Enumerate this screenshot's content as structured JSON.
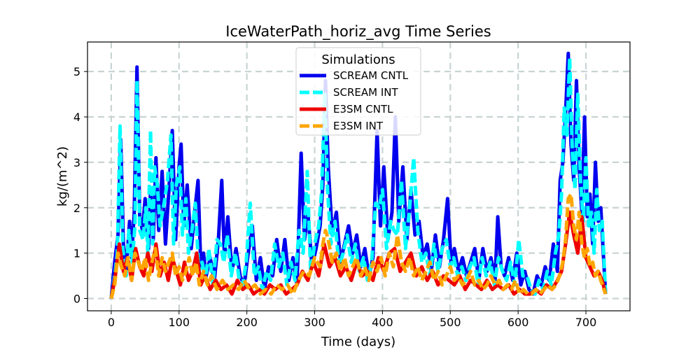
{
  "chart_data": {
    "type": "line",
    "title": "IceWaterPath_horiz_avg Time Series",
    "xlabel": "Time (days)",
    "ylabel": "kg/(m^2)",
    "xlim": [
      -35,
      765
    ],
    "ylim": [
      -0.27,
      5.65
    ],
    "xticks": [
      0,
      100,
      200,
      300,
      400,
      500,
      600,
      700
    ],
    "yticks": [
      0,
      1,
      2,
      3,
      4,
      5
    ],
    "grid": true,
    "legend": {
      "title": "Simulations",
      "position": "upper-center"
    },
    "series": [
      {
        "name": "SCREAM CNTL",
        "color": "#0000ee",
        "style": "solid",
        "x": [
          0,
          5,
          10,
          14,
          18,
          22,
          27,
          30,
          34,
          38,
          42,
          46,
          50,
          55,
          58,
          62,
          66,
          70,
          75,
          80,
          85,
          90,
          95,
          100,
          103,
          107,
          112,
          118,
          123,
          128,
          132,
          136,
          140,
          146,
          152,
          158,
          163,
          167,
          172,
          178,
          184,
          190,
          196,
          202,
          208,
          214,
          220,
          226,
          232,
          238,
          244,
          250,
          256,
          262,
          268,
          274,
          280,
          285,
          290,
          296,
          302,
          308,
          312,
          316,
          320,
          326,
          332,
          338,
          344,
          350,
          356,
          362,
          368,
          374,
          380,
          386,
          392,
          397,
          402,
          408,
          414,
          419,
          424,
          430,
          436,
          442,
          448,
          454,
          460,
          466,
          472,
          478,
          484,
          490,
          496,
          501,
          506,
          512,
          518,
          524,
          530,
          536,
          542,
          548,
          554,
          560,
          566,
          570,
          575,
          580,
          586,
          592,
          598,
          604,
          610,
          616,
          622,
          628,
          634,
          640,
          646,
          652,
          658,
          662,
          666,
          670,
          674,
          678,
          682,
          686,
          690,
          694,
          698,
          702,
          706,
          710,
          714,
          718,
          722,
          726,
          729
        ],
        "y": [
          0,
          0.8,
          1.4,
          3.5,
          1.2,
          0.6,
          1.7,
          0.9,
          1.9,
          5.1,
          1.8,
          1.5,
          2.2,
          1.1,
          2.4,
          1.3,
          3.1,
          1.5,
          2.8,
          1.2,
          2.4,
          3.7,
          1.3,
          2.9,
          3.4,
          1.6,
          2.5,
          1.1,
          1.9,
          2.6,
          0.7,
          1.0,
          0.5,
          0.9,
          0.4,
          1.3,
          2.6,
          0.9,
          1.8,
          0.6,
          1.1,
          0.5,
          0.3,
          1.0,
          1.6,
          0.4,
          0.9,
          0.2,
          0.7,
          0.5,
          1.3,
          0.6,
          1.3,
          0.4,
          0.9,
          0.3,
          3.2,
          1.3,
          1.9,
          0.7,
          1.1,
          1.6,
          2.5,
          4.8,
          2.9,
          1.4,
          1.9,
          0.8,
          1.2,
          1.6,
          1.0,
          1.4,
          0.7,
          1.1,
          0.5,
          0.9,
          3.7,
          1.6,
          2.9,
          1.3,
          1.9,
          4.0,
          1.7,
          2.9,
          1.3,
          2.4,
          1.4,
          1.7,
          0.9,
          1.2,
          0.6,
          1.4,
          0.7,
          1.3,
          2.2,
          0.8,
          1.1,
          0.6,
          0.9,
          0.5,
          0.8,
          1.1,
          0.4,
          1.1,
          0.6,
          0.9,
          0.4,
          1.8,
          0.7,
          0.5,
          0.9,
          0.4,
          1.0,
          0.3,
          0.6,
          0.2,
          0.1,
          0.5,
          0.3,
          0.7,
          0.4,
          1.2,
          0.6,
          2.6,
          3.0,
          4.1,
          5.4,
          3.4,
          2.6,
          4.8,
          2.9,
          1.9,
          4.0,
          1.8,
          2.3,
          1.2,
          3.0,
          1.7,
          2.0,
          0.9,
          0.1
        ]
      },
      {
        "name": "SCREAM INT",
        "color": "#00ffff",
        "style": "dashed",
        "x": [
          0,
          6,
          9,
          13,
          17,
          22,
          26,
          31,
          35,
          38,
          42,
          47,
          51,
          54,
          58,
          61,
          64,
          68,
          72,
          78,
          83,
          88,
          92,
          96,
          101,
          105,
          110,
          114,
          119,
          124,
          129,
          134,
          139,
          144,
          150,
          156,
          161,
          166,
          171,
          177,
          183,
          189,
          194,
          199,
          205,
          211,
          217,
          223,
          229,
          235,
          241,
          247,
          253,
          259,
          265,
          271,
          277,
          283,
          289,
          294,
          300,
          306,
          310,
          315,
          319,
          324,
          330,
          336,
          342,
          348,
          354,
          360,
          366,
          372,
          378,
          384,
          390,
          395,
          400,
          406,
          412,
          417,
          422,
          428,
          434,
          440,
          446,
          452,
          458,
          464,
          470,
          476,
          482,
          488,
          494,
          500,
          505,
          511,
          517,
          523,
          529,
          535,
          541,
          547,
          553,
          559,
          565,
          571,
          577,
          583,
          589,
          595,
          601,
          607,
          613,
          619,
          625,
          631,
          637,
          643,
          649,
          655,
          660,
          664,
          668,
          672,
          676,
          680,
          684,
          688,
          692,
          696,
          700,
          704,
          708,
          712,
          716,
          720,
          724,
          729
        ],
        "y": [
          0,
          0.6,
          1.0,
          3.8,
          1.1,
          0.5,
          1.5,
          0.8,
          1.6,
          4.8,
          1.5,
          1.3,
          2.0,
          1.0,
          3.7,
          1.2,
          2.9,
          2.5,
          1.6,
          2.1,
          2.6,
          3.6,
          1.2,
          2.5,
          2.9,
          1.4,
          2.2,
          1.0,
          1.5,
          2.1,
          0.6,
          0.8,
          0.4,
          1.1,
          0.3,
          1.3,
          1.2,
          0.8,
          1.4,
          0.5,
          1.0,
          0.4,
          0.3,
          0.8,
          2.1,
          0.5,
          0.7,
          0.2,
          0.6,
          0.4,
          1.2,
          0.7,
          1.0,
          0.3,
          0.8,
          0.4,
          1.5,
          1.0,
          2.8,
          0.6,
          1.2,
          1.6,
          2.3,
          4.5,
          2.4,
          1.2,
          1.7,
          0.7,
          1.0,
          1.4,
          0.8,
          1.2,
          0.6,
          0.9,
          0.4,
          0.8,
          2.1,
          2.0,
          2.4,
          1.1,
          1.7,
          1.5,
          1.4,
          2.6,
          1.1,
          2.0,
          3.1,
          1.5,
          0.8,
          1.0,
          0.5,
          1.2,
          0.6,
          1.1,
          1.3,
          0.7,
          0.9,
          0.5,
          0.7,
          0.4,
          0.7,
          0.9,
          0.3,
          0.9,
          0.5,
          0.8,
          0.3,
          0.9,
          0.6,
          0.4,
          0.8,
          0.3,
          1.3,
          0.5,
          0.5,
          0.2,
          0.1,
          0.4,
          0.2,
          0.6,
          0.3,
          1.0,
          1.4,
          2.3,
          4.2,
          3.6,
          5.3,
          3.2,
          2.4,
          4.5,
          2.6,
          1.7,
          3.1,
          1.6,
          1.9,
          1.0,
          2.4,
          1.5,
          1.7,
          0.1
        ]
      },
      {
        "name": "E3SM CNTL",
        "color": "#ee0000",
        "style": "solid",
        "x": [
          0,
          6,
          12,
          18,
          24,
          30,
          36,
          42,
          48,
          54,
          60,
          66,
          72,
          78,
          84,
          90,
          96,
          102,
          108,
          114,
          120,
          126,
          132,
          138,
          146,
          154,
          162,
          170,
          178,
          186,
          194,
          202,
          210,
          218,
          226,
          234,
          242,
          250,
          258,
          266,
          274,
          282,
          290,
          298,
          306,
          314,
          322,
          330,
          338,
          346,
          354,
          362,
          370,
          378,
          386,
          394,
          402,
          410,
          418,
          426,
          434,
          442,
          450,
          458,
          466,
          474,
          482,
          490,
          498,
          506,
          514,
          522,
          530,
          538,
          546,
          554,
          562,
          570,
          578,
          586,
          594,
          602,
          610,
          618,
          626,
          634,
          642,
          650,
          658,
          664,
          670,
          676,
          682,
          688,
          694,
          700,
          706,
          712,
          718,
          724,
          729
        ],
        "y": [
          0,
          0.5,
          1.2,
          0.6,
          0.9,
          0.4,
          1.1,
          0.7,
          0.5,
          1.0,
          0.6,
          1.2,
          0.5,
          0.8,
          0.4,
          0.9,
          0.6,
          0.3,
          0.8,
          0.4,
          0.6,
          1.0,
          0.3,
          0.5,
          0.2,
          0.4,
          0.2,
          0.3,
          0.1,
          0.4,
          0.2,
          0.3,
          0.1,
          0.2,
          0.1,
          0.3,
          0.2,
          0.3,
          0.1,
          0.2,
          0.3,
          0.6,
          0.4,
          0.8,
          0.5,
          1.2,
          0.7,
          0.9,
          0.5,
          0.7,
          0.4,
          0.8,
          0.5,
          0.6,
          0.4,
          0.9,
          0.6,
          1.0,
          1.1,
          0.6,
          0.8,
          1.0,
          0.5,
          0.7,
          0.4,
          0.6,
          0.3,
          0.5,
          0.4,
          0.3,
          0.5,
          0.2,
          0.4,
          0.3,
          0.2,
          0.4,
          0.2,
          0.3,
          0.2,
          0.3,
          0.1,
          0.2,
          0.1,
          0.1,
          0.2,
          0.1,
          0.3,
          0.2,
          0.4,
          0.6,
          1.2,
          1.9,
          1.4,
          1.0,
          1.8,
          0.9,
          0.7,
          0.5,
          0.6,
          0.4,
          0.1
        ]
      },
      {
        "name": "E3SM INT",
        "color": "#ffa500",
        "style": "dashed",
        "x": [
          0,
          5,
          10,
          15,
          20,
          25,
          30,
          35,
          40,
          45,
          50,
          55,
          60,
          65,
          70,
          75,
          80,
          85,
          90,
          95,
          100,
          105,
          110,
          115,
          120,
          125,
          130,
          136,
          142,
          148,
          156,
          164,
          172,
          180,
          188,
          196,
          204,
          212,
          220,
          228,
          236,
          244,
          252,
          260,
          268,
          276,
          284,
          292,
          300,
          308,
          312,
          316,
          320,
          326,
          332,
          338,
          344,
          350,
          356,
          362,
          368,
          374,
          380,
          386,
          392,
          398,
          404,
          410,
          416,
          422,
          428,
          434,
          440,
          446,
          452,
          458,
          464,
          470,
          476,
          482,
          488,
          494,
          500,
          506,
          512,
          518,
          524,
          530,
          536,
          542,
          548,
          554,
          560,
          566,
          572,
          578,
          584,
          590,
          596,
          602,
          608,
          614,
          620,
          626,
          632,
          638,
          644,
          650,
          656,
          661,
          666,
          670,
          674,
          678,
          682,
          686,
          690,
          694,
          698,
          702,
          706,
          710,
          714,
          718,
          722,
          729
        ],
        "y": [
          0,
          0.3,
          1.0,
          0.7,
          0.5,
          0.9,
          0.4,
          1.0,
          0.8,
          0.6,
          0.9,
          0.4,
          0.8,
          1.1,
          0.5,
          0.9,
          0.6,
          0.8,
          1.0,
          0.5,
          0.7,
          0.4,
          0.6,
          0.9,
          0.5,
          0.8,
          0.3,
          0.6,
          0.3,
          0.5,
          0.2,
          0.4,
          0.2,
          0.3,
          0.2,
          0.4,
          0.2,
          0.3,
          0.1,
          0.2,
          0.1,
          0.3,
          0.2,
          0.3,
          0.1,
          0.4,
          0.6,
          0.5,
          0.9,
          0.7,
          1.2,
          1.5,
          1.3,
          0.8,
          1.0,
          0.6,
          0.9,
          0.5,
          0.7,
          0.9,
          0.5,
          0.7,
          0.4,
          0.8,
          0.6,
          0.9,
          0.5,
          1.0,
          0.7,
          1.4,
          0.8,
          0.6,
          0.9,
          0.5,
          0.7,
          0.4,
          0.6,
          0.8,
          0.4,
          0.6,
          0.3,
          0.5,
          0.7,
          0.4,
          0.5,
          0.3,
          0.4,
          0.6,
          0.3,
          0.4,
          0.2,
          0.3,
          0.5,
          0.3,
          0.4,
          0.2,
          0.3,
          0.2,
          0.4,
          0.1,
          0.2,
          0.1,
          0.1,
          0.2,
          0.1,
          0.2,
          0.3,
          0.2,
          0.3,
          0.5,
          0.8,
          1.3,
          2.2,
          2.3,
          1.6,
          1.3,
          1.9,
          1.2,
          0.9,
          1.1,
          0.7,
          0.8,
          0.5,
          0.6,
          0.4,
          0.1
        ]
      }
    ]
  }
}
